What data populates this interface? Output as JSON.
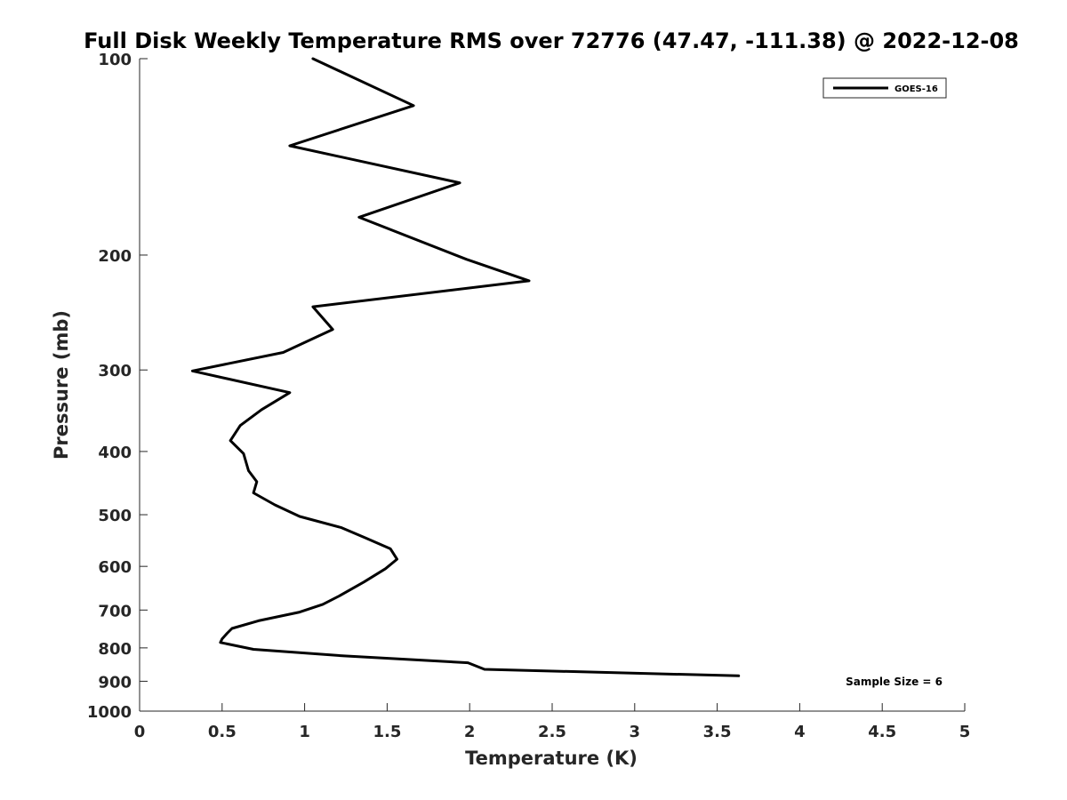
{
  "chart_data": {
    "type": "line",
    "title": "Full Disk Weekly Temperature RMS over 72776 (47.47, -111.38) @ 2022-12-08",
    "xlabel": "Temperature (K)",
    "ylabel": "Pressure (mb)",
    "xlim": [
      0,
      5
    ],
    "ylim": [
      100,
      1000
    ],
    "y_scale": "log",
    "y_reversed": true,
    "x_ticks": [
      0,
      0.5,
      1,
      1.5,
      2,
      2.5,
      3,
      3.5,
      4,
      4.5,
      5
    ],
    "x_tick_labels": [
      "0",
      "0.5",
      "1",
      "1.5",
      "2",
      "2.5",
      "3",
      "3.5",
      "4",
      "4.5",
      "5"
    ],
    "y_ticks": [
      100,
      200,
      300,
      400,
      500,
      600,
      700,
      800,
      900,
      1000
    ],
    "y_tick_labels": [
      "100",
      "200",
      "300",
      "400",
      "500",
      "600",
      "700",
      "800",
      "900",
      "1000"
    ],
    "grid": false,
    "legend_position": "top-right",
    "annotation": "Sample Size = 6",
    "series": [
      {
        "name": "GOES-16",
        "color": "#000000",
        "points": [
          {
            "x": 1.05,
            "y": 100
          },
          {
            "x": 1.66,
            "y": 118
          },
          {
            "x": 0.91,
            "y": 136
          },
          {
            "x": 1.94,
            "y": 155
          },
          {
            "x": 1.33,
            "y": 175
          },
          {
            "x": 1.98,
            "y": 203
          },
          {
            "x": 2.36,
            "y": 219
          },
          {
            "x": 1.05,
            "y": 240
          },
          {
            "x": 1.17,
            "y": 260
          },
          {
            "x": 0.87,
            "y": 282
          },
          {
            "x": 0.32,
            "y": 301
          },
          {
            "x": 0.91,
            "y": 325
          },
          {
            "x": 0.74,
            "y": 345
          },
          {
            "x": 0.61,
            "y": 365
          },
          {
            "x": 0.55,
            "y": 385
          },
          {
            "x": 0.63,
            "y": 403
          },
          {
            "x": 0.66,
            "y": 428
          },
          {
            "x": 0.71,
            "y": 445
          },
          {
            "x": 0.69,
            "y": 463
          },
          {
            "x": 0.82,
            "y": 483
          },
          {
            "x": 0.97,
            "y": 503
          },
          {
            "x": 1.22,
            "y": 523
          },
          {
            "x": 1.37,
            "y": 543
          },
          {
            "x": 1.52,
            "y": 564
          },
          {
            "x": 1.56,
            "y": 585
          },
          {
            "x": 1.49,
            "y": 605
          },
          {
            "x": 1.36,
            "y": 634
          },
          {
            "x": 1.21,
            "y": 666
          },
          {
            "x": 1.11,
            "y": 686
          },
          {
            "x": 0.97,
            "y": 705
          },
          {
            "x": 0.72,
            "y": 727
          },
          {
            "x": 0.56,
            "y": 747
          },
          {
            "x": 0.53,
            "y": 760
          },
          {
            "x": 0.5,
            "y": 775
          },
          {
            "x": 0.49,
            "y": 785
          },
          {
            "x": 0.69,
            "y": 804
          },
          {
            "x": 1.24,
            "y": 823
          },
          {
            "x": 1.99,
            "y": 843
          },
          {
            "x": 2.09,
            "y": 863
          },
          {
            "x": 3.63,
            "y": 883
          }
        ]
      }
    ]
  }
}
